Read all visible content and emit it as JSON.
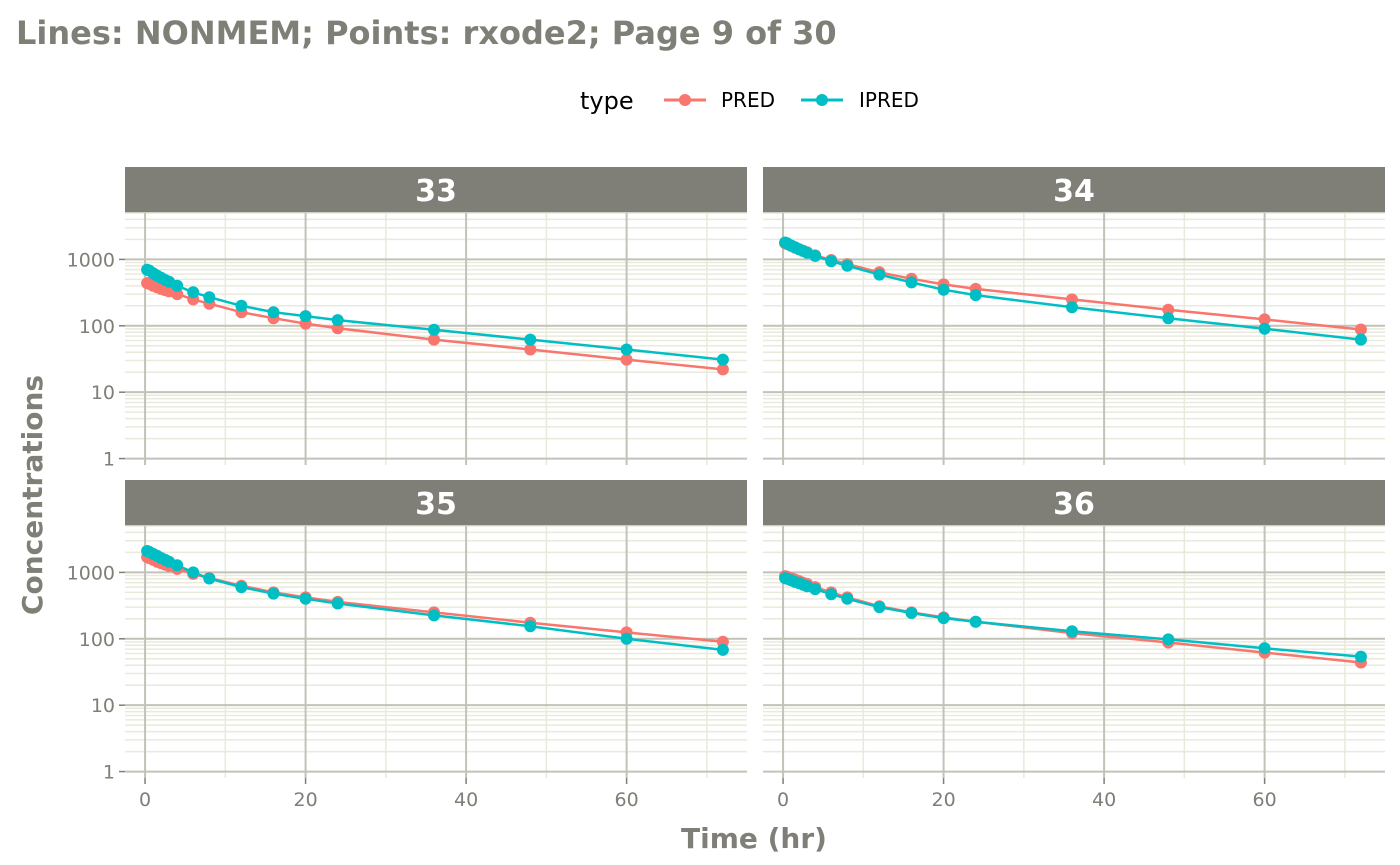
{
  "chart_data": {
    "type": "line",
    "title": "Lines: NONMEM; Points: rxode2; Page 9 of 30",
    "xlabel": "Time (hr)",
    "ylabel": "Concentrations",
    "y_scale": "log10",
    "xlim": [
      -2.5,
      75
    ],
    "ylim": [
      0.8,
      5000
    ],
    "x_ticks": [
      0,
      20,
      40,
      60
    ],
    "y_ticks": [
      1,
      10,
      100,
      1000
    ],
    "y_tick_labels": [
      "1",
      "10",
      "100",
      "1000"
    ],
    "grid": true,
    "legend": {
      "title": "type",
      "position": "top",
      "entries": [
        {
          "name": "PRED",
          "color": "#F8766D"
        },
        {
          "name": "IPRED",
          "color": "#00BFC4"
        }
      ]
    },
    "colors": {
      "strip_bg": "#7f7f77",
      "panel_bg": "#ffffff",
      "grid_major": "#c2c2b8",
      "grid_minor": "#e9e9dc",
      "text": "#7f7f77"
    },
    "panels": [
      {
        "id": "33",
        "x": [
          0.25,
          0.5,
          1,
          1.5,
          2,
          2.5,
          3,
          4,
          6,
          8,
          12,
          16,
          20,
          24,
          36,
          48,
          60,
          72
        ],
        "series": [
          {
            "name": "PRED",
            "values": [
              440,
              430,
              400,
              380,
              360,
              345,
              330,
              300,
              250,
              215,
              160,
              130,
              108,
              92,
              62,
              44,
              31,
              22
            ]
          },
          {
            "name": "IPRED",
            "values": [
              700,
              680,
              620,
              570,
              530,
              490,
              460,
              400,
              320,
              270,
              200,
              160,
              140,
              122,
              87,
              62,
              44,
              31
            ]
          }
        ]
      },
      {
        "id": "34",
        "x": [
          0.25,
          0.5,
          1,
          1.5,
          2,
          2.5,
          3,
          4,
          6,
          8,
          12,
          16,
          20,
          24,
          36,
          48,
          60,
          72
        ],
        "series": [
          {
            "name": "PRED",
            "values": [
              1750,
              1700,
              1600,
              1500,
              1420,
              1350,
              1280,
              1150,
              980,
              850,
              640,
              510,
              420,
              360,
              250,
              175,
              125,
              88
            ]
          },
          {
            "name": "IPRED",
            "values": [
              1800,
              1750,
              1620,
              1520,
              1420,
              1340,
              1260,
              1130,
              940,
              800,
              590,
              450,
              350,
              290,
              190,
              130,
              90,
              62
            ]
          }
        ]
      },
      {
        "id": "35",
        "x": [
          0.25,
          0.5,
          1,
          1.5,
          2,
          2.5,
          3,
          4,
          6,
          8,
          12,
          16,
          20,
          24,
          36,
          48,
          60,
          72
        ],
        "series": [
          {
            "name": "PRED",
            "values": [
              1700,
              1650,
              1550,
              1450,
              1380,
              1310,
              1250,
              1130,
              950,
              820,
              630,
              500,
              420,
              360,
              250,
              175,
              125,
              90
            ]
          },
          {
            "name": "IPRED",
            "values": [
              2100,
              2050,
              1900,
              1780,
              1650,
              1550,
              1450,
              1280,
              1000,
              810,
              600,
              480,
              400,
              340,
              225,
              155,
              100,
              68
            ]
          }
        ]
      },
      {
        "id": "36",
        "x": [
          0.25,
          0.5,
          1,
          1.5,
          2,
          2.5,
          3,
          4,
          6,
          8,
          12,
          16,
          20,
          24,
          36,
          48,
          60,
          72
        ],
        "series": [
          {
            "name": "PRED",
            "values": [
              880,
              860,
              820,
              780,
              740,
              700,
              670,
              600,
              500,
              420,
              310,
              250,
              210,
              180,
              122,
              88,
              62,
              44
            ]
          },
          {
            "name": "IPRED",
            "values": [
              820,
              800,
              760,
              720,
              690,
              650,
              620,
              560,
              470,
              400,
              300,
              245,
              205,
              180,
              130,
              98,
              72,
              54
            ]
          }
        ]
      }
    ]
  }
}
